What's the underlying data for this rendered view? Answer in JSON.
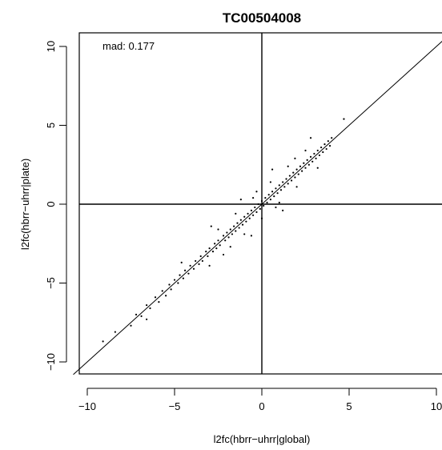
{
  "chart_data": {
    "type": "scatter",
    "title": "TC00504008",
    "xlabel": "l2fc(hbrr−uhrr|global)",
    "ylabel": "l2fc(hbrr−uhrr|plate)",
    "annotation": "mad:  0.177",
    "xlim": [
      -10.8,
      10.8
    ],
    "ylim": [
      -10.8,
      10.8
    ],
    "x_ticks": [
      -10,
      -5,
      0,
      5,
      10
    ],
    "x_tick_labels": [
      "−10",
      "−5",
      "0",
      "5",
      "10"
    ],
    "y_ticks": [
      -10,
      -5,
      0,
      5,
      10
    ],
    "y_tick_labels": [
      "−10",
      "−5",
      "0",
      "5",
      "10"
    ],
    "reference_lines": [
      {
        "type": "vertical",
        "x": 0
      },
      {
        "type": "horizontal",
        "y": 0
      },
      {
        "type": "diagonal",
        "slope": 1,
        "intercept": 0
      }
    ],
    "grid": false,
    "legend": "none",
    "point_color": "#000000",
    "series": [
      {
        "points": [
          [
            -9.1,
            -8.7
          ],
          [
            -8.4,
            -8.1
          ],
          [
            -7.5,
            -7.7
          ],
          [
            -7.2,
            -7.0
          ],
          [
            -6.9,
            -7.1
          ],
          [
            -6.6,
            -6.4
          ],
          [
            -6.4,
            -6.6
          ],
          [
            -6.1,
            -5.9
          ],
          [
            -5.9,
            -6.2
          ],
          [
            -5.7,
            -5.5
          ],
          [
            -5.5,
            -5.8
          ],
          [
            -5.3,
            -5.1
          ],
          [
            -5.2,
            -5.4
          ],
          [
            -5.0,
            -4.8
          ],
          [
            -4.8,
            -5.0
          ],
          [
            -4.7,
            -4.5
          ],
          [
            -4.5,
            -4.7
          ],
          [
            -4.4,
            -4.2
          ],
          [
            -4.2,
            -4.4
          ],
          [
            -4.1,
            -3.9
          ],
          [
            -3.9,
            -4.1
          ],
          [
            -3.8,
            -3.6
          ],
          [
            -3.6,
            -3.8
          ],
          [
            -3.5,
            -3.3
          ],
          [
            -3.4,
            -3.6
          ],
          [
            -3.2,
            -3.0
          ],
          [
            -3.1,
            -3.3
          ],
          [
            -3.0,
            -2.8
          ],
          [
            -2.8,
            -3.0
          ],
          [
            -2.7,
            -2.5
          ],
          [
            -2.6,
            -2.8
          ],
          [
            -2.5,
            -2.3
          ],
          [
            -2.4,
            -2.6
          ],
          [
            -2.2,
            -2.0
          ],
          [
            -2.1,
            -2.3
          ],
          [
            -2.0,
            -1.8
          ],
          [
            -1.9,
            -2.1
          ],
          [
            -1.8,
            -1.6
          ],
          [
            -1.7,
            -1.9
          ],
          [
            -1.6,
            -1.4
          ],
          [
            -1.5,
            -1.7
          ],
          [
            -1.4,
            -1.2
          ],
          [
            -1.3,
            -1.5
          ],
          [
            -1.2,
            -1.0
          ],
          [
            -1.1,
            -1.3
          ],
          [
            -1.0,
            -0.8
          ],
          [
            -0.9,
            -1.1
          ],
          [
            -0.8,
            -0.6
          ],
          [
            -0.7,
            -0.9
          ],
          [
            -0.6,
            -0.4
          ],
          [
            -0.5,
            -0.7
          ],
          [
            -0.4,
            -0.2
          ],
          [
            -0.3,
            -0.5
          ],
          [
            -0.2,
            0.0
          ],
          [
            -0.1,
            -0.3
          ],
          [
            0.0,
            0.2
          ],
          [
            0.1,
            -0.1
          ],
          [
            0.2,
            0.4
          ],
          [
            0.3,
            0.1
          ],
          [
            0.4,
            0.6
          ],
          [
            0.5,
            0.3
          ],
          [
            0.6,
            0.8
          ],
          [
            0.7,
            0.5
          ],
          [
            0.8,
            1.0
          ],
          [
            0.9,
            0.7
          ],
          [
            1.0,
            1.2
          ],
          [
            1.1,
            0.9
          ],
          [
            1.2,
            1.4
          ],
          [
            1.3,
            1.1
          ],
          [
            1.4,
            1.6
          ],
          [
            1.5,
            1.3
          ],
          [
            1.6,
            1.8
          ],
          [
            1.7,
            1.5
          ],
          [
            1.8,
            2.0
          ],
          [
            1.9,
            1.7
          ],
          [
            2.0,
            2.2
          ],
          [
            2.1,
            1.9
          ],
          [
            2.2,
            2.4
          ],
          [
            2.3,
            2.1
          ],
          [
            2.4,
            2.6
          ],
          [
            2.5,
            2.3
          ],
          [
            2.6,
            2.8
          ],
          [
            2.7,
            2.5
          ],
          [
            2.8,
            3.0
          ],
          [
            2.9,
            2.7
          ],
          [
            3.0,
            3.2
          ],
          [
            3.1,
            2.9
          ],
          [
            3.2,
            3.4
          ],
          [
            3.3,
            3.1
          ],
          [
            3.4,
            3.6
          ],
          [
            3.5,
            3.3
          ],
          [
            3.6,
            3.8
          ],
          [
            3.7,
            3.5
          ],
          [
            3.8,
            4.0
          ],
          [
            3.9,
            3.7
          ],
          [
            4.0,
            4.2
          ],
          [
            -3.0,
            -3.9
          ],
          [
            -2.5,
            -1.6
          ],
          [
            -1.8,
            -2.7
          ],
          [
            -1.5,
            -0.6
          ],
          [
            -1.0,
            -1.9
          ],
          [
            -0.5,
            0.4
          ],
          [
            0.0,
            -0.9
          ],
          [
            0.5,
            1.4
          ],
          [
            1.0,
            0.1
          ],
          [
            1.5,
            2.4
          ],
          [
            2.0,
            1.1
          ],
          [
            2.5,
            3.4
          ],
          [
            -6.6,
            -7.3
          ],
          [
            -4.6,
            -3.7
          ],
          [
            -2.2,
            -3.2
          ],
          [
            -0.3,
            0.8
          ],
          [
            0.8,
            -0.2
          ],
          [
            1.9,
            2.9
          ],
          [
            3.2,
            2.3
          ],
          [
            4.7,
            5.4
          ],
          [
            -1.2,
            0.3
          ],
          [
            0.6,
            2.2
          ],
          [
            -0.6,
            -2.0
          ],
          [
            1.2,
            -0.4
          ],
          [
            2.8,
            4.2
          ],
          [
            -2.9,
            -1.4
          ]
        ]
      }
    ]
  }
}
